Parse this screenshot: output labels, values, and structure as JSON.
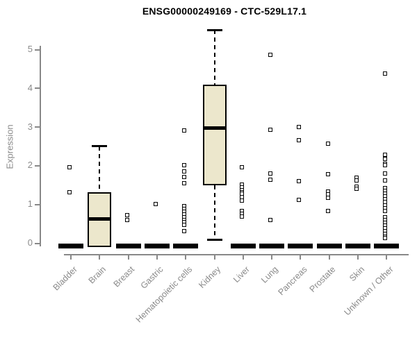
{
  "chart_data": {
    "type": "boxplot",
    "title": "ENSG00000249169 - CTC-529L17.1",
    "ylabel": "Expression",
    "xlabel": "",
    "ylim": [
      0,
      5.6
    ],
    "yticks": [
      0,
      1,
      2,
      3,
      4,
      5
    ],
    "grid": false,
    "legend": "none",
    "box_fill_color": "#ece7cc",
    "box_border_color": "#000000",
    "axis_color": "#888888",
    "tick_text_color": "#8a8a8a",
    "categories": [
      "Bladder",
      "Brain",
      "Breast",
      "Gastric",
      "Hematopoietic cells",
      "Kidney",
      "Liver",
      "Lung",
      "Pancreas",
      "Prostate",
      "Skin",
      "Unknown / Other"
    ],
    "boxes": [
      {
        "category": "Bladder",
        "collapsed": true,
        "q1": 0,
        "median": 0,
        "q3": 0,
        "whisker_low": 0,
        "whisker_high": 0,
        "points": [
          1.95,
          1.3
        ]
      },
      {
        "category": "Brain",
        "collapsed": false,
        "q1": 0,
        "median": 0.62,
        "q3": 1.3,
        "whisker_low": 0,
        "whisker_high": 2.5,
        "points": []
      },
      {
        "category": "Breast",
        "collapsed": true,
        "q1": 0,
        "median": 0,
        "q3": 0,
        "whisker_low": 0,
        "whisker_high": 0,
        "points": [
          0.72,
          0.6
        ]
      },
      {
        "category": "Gastric",
        "collapsed": true,
        "q1": 0,
        "median": 0,
        "q3": 0,
        "whisker_low": 0,
        "whisker_high": 0,
        "points": [
          1.0
        ]
      },
      {
        "category": "Hematopoietic cells",
        "collapsed": true,
        "q1": 0,
        "median": 0,
        "q3": 0,
        "whisker_low": 0,
        "whisker_high": 0,
        "points": [
          2.9,
          2.0,
          1.85,
          1.7,
          1.55,
          0.95,
          0.88,
          0.81,
          0.74,
          0.67,
          0.6,
          0.53,
          0.46,
          0.3
        ]
      },
      {
        "category": "Kidney",
        "collapsed": false,
        "q1": 1.48,
        "median": 2.97,
        "q3": 4.08,
        "whisker_low": 0.08,
        "whisker_high": 5.5,
        "points": []
      },
      {
        "category": "Liver",
        "collapsed": true,
        "q1": 0,
        "median": 0,
        "q3": 0,
        "whisker_low": 0,
        "whisker_high": 0,
        "points": [
          1.95,
          1.5,
          1.43,
          1.36,
          1.3,
          1.27,
          1.19,
          1.1,
          0.83,
          0.76,
          0.68
        ]
      },
      {
        "category": "Lung",
        "collapsed": true,
        "q1": 0,
        "median": 0,
        "q3": 0,
        "whisker_low": 0,
        "whisker_high": 0,
        "points": [
          4.85,
          2.92,
          1.8,
          1.63,
          0.6
        ]
      },
      {
        "category": "Pancreas",
        "collapsed": true,
        "q1": 0,
        "median": 0,
        "q3": 0,
        "whisker_low": 0,
        "whisker_high": 0,
        "points": [
          3.0,
          2.65,
          1.6,
          1.12
        ]
      },
      {
        "category": "Prostate",
        "collapsed": true,
        "q1": 0,
        "median": 0,
        "q3": 0,
        "whisker_low": 0,
        "whisker_high": 0,
        "points": [
          2.57,
          1.78,
          1.33,
          1.25,
          1.17,
          0.82
        ]
      },
      {
        "category": "Skin",
        "collapsed": true,
        "q1": 0,
        "median": 0,
        "q3": 0,
        "whisker_low": 0,
        "whisker_high": 0,
        "points": [
          1.68,
          1.62,
          1.45,
          1.39
        ]
      },
      {
        "category": "Unknown / Other",
        "collapsed": true,
        "q1": 0,
        "median": 0,
        "q3": 0,
        "whisker_low": 0,
        "whisker_high": 0,
        "points": [
          4.37,
          2.28,
          2.16,
          2.05,
          2.0,
          1.8,
          1.62,
          1.42,
          1.34,
          1.27,
          1.2,
          1.13,
          1.05,
          0.97,
          0.9,
          0.83,
          0.66,
          0.59,
          0.52,
          0.45,
          0.38,
          0.31,
          0.24,
          0.17,
          0.12
        ]
      }
    ]
  }
}
